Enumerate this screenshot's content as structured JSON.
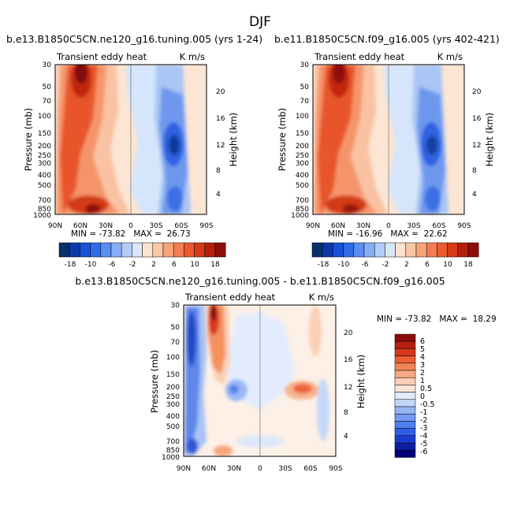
{
  "page_title": "DJF",
  "colors": {
    "diverging_18": [
      "#08306b",
      "#0a3aa8",
      "#1a52d9",
      "#2f6de8",
      "#5a8ef0",
      "#86aef4",
      "#b3cdf8",
      "#d9e7fb",
      "#fbe3d0",
      "#f9c6a7",
      "#f7a37a",
      "#f37c51",
      "#ea5a2e",
      "#d43b18",
      "#b5200e",
      "#8e0d0a"
    ],
    "diff_scale": [
      "#00007a",
      "#0b1fa0",
      "#1a3ccf",
      "#2f5fe8",
      "#4f7ef0",
      "#7399f2",
      "#98b5f5",
      "#c3d6f9",
      "#e0ebfc",
      "#fde5d6",
      "#fbcfb6",
      "#f8a986",
      "#f48358",
      "#ec5e33",
      "#d8391a",
      "#b81f10",
      "#8b0a0a"
    ]
  },
  "chart_data": [
    {
      "type": "heatmap",
      "title": "b.e13.B1850C5CN.ne120_g16.tuning.005 (yrs 1-24)",
      "left_label": "Transient eddy heat",
      "right_label": "K m/s",
      "ylabel": "Pressure (mb)",
      "y2label": "Height (km)",
      "x_ticks": [
        "90N",
        "60N",
        "30N",
        "0",
        "30S",
        "60S",
        "90S"
      ],
      "y_ticks": [
        "30",
        "50",
        "70",
        "100",
        "150",
        "200",
        "250",
        "300",
        "400",
        "500",
        "700",
        "850",
        "1000"
      ],
      "y2_ticks": [
        "20",
        "16",
        "12",
        "8",
        "4"
      ],
      "stats": "MIN = -73.82   MAX =  26.73",
      "colorbar_labels": [
        "-18",
        "-10",
        "-6",
        "-2",
        "2",
        "6",
        "10",
        "18"
      ]
    },
    {
      "type": "heatmap",
      "title": "b.e11.B1850C5CN.f09_g16.005 (yrs 402-421)",
      "left_label": "Transient eddy heat",
      "right_label": "K m/s",
      "ylabel": "Pressure (mb)",
      "y2label": "Height (km)",
      "x_ticks": [
        "90N",
        "60N",
        "30N",
        "0",
        "30S",
        "60S",
        "90S"
      ],
      "y_ticks": [
        "30",
        "50",
        "70",
        "100",
        "150",
        "200",
        "250",
        "300",
        "400",
        "500",
        "700",
        "850",
        "1000"
      ],
      "y2_ticks": [
        "20",
        "16",
        "12",
        "8",
        "4"
      ],
      "stats": "MIN = -16.96   MAX =  22.62",
      "colorbar_labels": [
        "-18",
        "-10",
        "-6",
        "-2",
        "2",
        "6",
        "10",
        "18"
      ]
    },
    {
      "type": "heatmap",
      "title": "b.e13.B1850C5CN.ne120_g16.tuning.005 - b.e11.B1850C5CN.f09_g16.005",
      "left_label": "Transient eddy heat",
      "right_label": "K m/s",
      "ylabel": "Pressure (mb)",
      "y2label": "Height (km)",
      "x_ticks": [
        "90N",
        "60N",
        "30N",
        "0",
        "30S",
        "60S",
        "90S"
      ],
      "y_ticks": [
        "30",
        "50",
        "70",
        "100",
        "150",
        "200",
        "250",
        "300",
        "400",
        "500",
        "700",
        "850",
        "1000"
      ],
      "y2_ticks": [
        "20",
        "16",
        "12",
        "8",
        "4"
      ],
      "stats": "MIN = -73.82   MAX =  18.29",
      "colorbar_labels": [
        "6",
        "5",
        "4",
        "3",
        "2",
        "1",
        "0.5",
        "0",
        "-0.5",
        "-1",
        "-2",
        "-3",
        "-4",
        "-5",
        "-6"
      ]
    }
  ]
}
